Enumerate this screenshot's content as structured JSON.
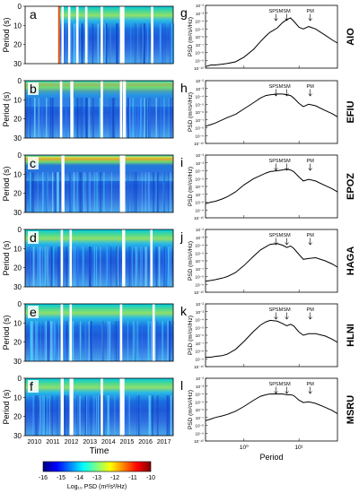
{
  "spectrogram": {
    "ylabel": "Period (s)",
    "xlabel": "Time",
    "yticks": [
      "0",
      "10",
      "20",
      "30"
    ],
    "years": [
      "2010",
      "2011",
      "2012",
      "2013",
      "2014",
      "2015",
      "2016",
      "2017"
    ],
    "colorbar": {
      "label": "Log₁₀ PSD (m²/s²/Hz)",
      "ticks": [
        "-16",
        "-15",
        "-14",
        "-13",
        "-12",
        "-11",
        "-10"
      ],
      "colors": [
        "#00007f",
        "#0000ff",
        "#0080ff",
        "#00ffff",
        "#80ff80",
        "#ffff00",
        "#ff8000",
        "#ff0000",
        "#7f0000"
      ]
    },
    "panels": [
      {
        "letter": "a",
        "data_start_frac": 0.235,
        "gaps": [
          0.245,
          0.29,
          0.345,
          0.405,
          0.51,
          0.64,
          0.655,
          0.85
        ]
      },
      {
        "letter": "b",
        "data_start_frac": 0.0,
        "gaps": [
          0.235,
          0.305,
          0.31,
          0.51,
          0.64,
          0.66,
          0.665
        ]
      },
      {
        "letter": "c",
        "data_start_frac": 0.0,
        "gaps": [
          0.245,
          0.25,
          0.64,
          0.655,
          0.66
        ]
      },
      {
        "letter": "d",
        "data_start_frac": 0.0,
        "gaps": [
          0.24,
          0.3,
          0.655,
          0.66,
          0.845
        ]
      },
      {
        "letter": "e",
        "data_start_frac": 0.0,
        "gaps": [
          0.24,
          0.3,
          0.64,
          0.86
        ]
      },
      {
        "letter": "f",
        "data_start_frac": 0.0,
        "gaps": [
          0.24,
          0.245,
          0.3,
          0.31,
          0.51,
          0.64,
          0.655
        ]
      }
    ]
  },
  "chart_data": [
    {
      "type": "line",
      "letter": "g",
      "station": "AIO",
      "xlabel": "",
      "ylabel": "PSD (m²/s²/Hz)",
      "x": [
        0.2,
        0.25,
        0.3,
        0.4,
        0.5,
        0.7,
        1,
        1.5,
        2,
        2.5,
        3,
        4,
        5,
        6,
        7,
        8,
        10,
        12,
        15,
        20,
        30,
        40,
        50
      ],
      "y": [
        -9.8,
        -9.6,
        -9.6,
        -9.5,
        -9.4,
        -9.2,
        -8.6,
        -7.6,
        -6.6,
        -5.9,
        -5.4,
        -4.9,
        -4.2,
        -3.8,
        -3.6,
        -4.0,
        -4.8,
        -5.0,
        -4.7,
        -5.0,
        -5.8,
        -6.4,
        -6.8
      ]
    },
    {
      "type": "line",
      "letter": "h",
      "station": "EFIU",
      "xlabel": "",
      "ylabel": "PSD (m²/s²/Hz)",
      "x": [
        0.2,
        0.25,
        0.3,
        0.4,
        0.5,
        0.7,
        1,
        1.5,
        2,
        2.5,
        3,
        4,
        5,
        6,
        7,
        8,
        10,
        12,
        15,
        20,
        30,
        40,
        50
      ],
      "y": [
        -7.8,
        -7.6,
        -7.4,
        -7.0,
        -6.7,
        -6.3,
        -5.6,
        -4.8,
        -4.2,
        -3.9,
        -3.8,
        -3.7,
        -3.7,
        -3.8,
        -3.9,
        -4.2,
        -4.9,
        -5.3,
        -5.0,
        -5.2,
        -5.8,
        -6.2,
        -6.6
      ]
    },
    {
      "type": "line",
      "letter": "i",
      "station": "EPOZ",
      "xlabel": "",
      "ylabel": "PSD (m²/s²/Hz)",
      "x": [
        0.2,
        0.25,
        0.3,
        0.4,
        0.5,
        0.7,
        1,
        1.5,
        2,
        2.5,
        3,
        4,
        5,
        6,
        7,
        8,
        10,
        12,
        15,
        20,
        30,
        40,
        50
      ],
      "y": [
        -8.2,
        -8.0,
        -7.9,
        -7.6,
        -7.3,
        -6.7,
        -5.8,
        -5.0,
        -4.6,
        -4.3,
        -4.1,
        -4.0,
        -3.9,
        -3.8,
        -3.9,
        -4.1,
        -4.8,
        -5.3,
        -5.1,
        -5.3,
        -5.9,
        -6.3,
        -6.7
      ]
    },
    {
      "type": "line",
      "letter": "j",
      "station": "HAGA",
      "xlabel": "",
      "ylabel": "PSD (m²/s²/Hz)",
      "x": [
        0.2,
        0.25,
        0.3,
        0.4,
        0.5,
        0.7,
        1,
        1.5,
        2,
        2.5,
        3,
        4,
        5,
        6,
        7,
        8,
        10,
        12,
        15,
        20,
        30,
        40,
        50
      ],
      "y": [
        -8.6,
        -8.5,
        -8.4,
        -8.2,
        -8.0,
        -7.5,
        -6.6,
        -5.4,
        -4.6,
        -4.2,
        -3.9,
        -3.8,
        -4.0,
        -4.3,
        -4.1,
        -4.4,
        -5.2,
        -5.8,
        -5.7,
        -5.6,
        -6.0,
        -6.4,
        -6.8
      ]
    },
    {
      "type": "line",
      "letter": "k",
      "station": "HLNI",
      "xlabel": "",
      "ylabel": "PSD (m²/s²/Hz)",
      "x": [
        0.2,
        0.25,
        0.3,
        0.4,
        0.5,
        0.7,
        1,
        1.5,
        2,
        2.5,
        3,
        4,
        5,
        6,
        7,
        8,
        10,
        12,
        15,
        20,
        30,
        40,
        50
      ],
      "y": [
        -8.8,
        -8.8,
        -8.7,
        -8.6,
        -8.4,
        -7.8,
        -6.8,
        -5.5,
        -4.7,
        -4.3,
        -4.1,
        -4.2,
        -4.5,
        -4.8,
        -4.6,
        -4.8,
        -5.6,
        -6.0,
        -5.8,
        -5.8,
        -6.1,
        -6.5,
        -6.9
      ]
    },
    {
      "type": "line",
      "letter": "l",
      "station": "MSRU",
      "xlabel": "Period",
      "ylabel": "PSD (m²/s²/Hz)",
      "x": [
        0.2,
        0.25,
        0.3,
        0.4,
        0.5,
        0.7,
        1,
        1.5,
        2,
        2.5,
        3,
        4,
        5,
        6,
        7,
        8,
        10,
        12,
        15,
        20,
        30,
        40,
        50
      ],
      "y": [
        -7.4,
        -7.2,
        -7.0,
        -6.8,
        -6.6,
        -6.2,
        -5.6,
        -4.8,
        -4.3,
        -4.1,
        -4.0,
        -4.0,
        -4.0,
        -4.1,
        -4.1,
        -4.2,
        -4.8,
        -5.1,
        -5.0,
        -5.2,
        -5.7,
        -6.1,
        -6.5
      ]
    }
  ],
  "psd_axes": {
    "x_scale": "log",
    "xlim": [
      0.2,
      50
    ],
    "xticks": [
      {
        "v": 1,
        "label": "10⁰"
      },
      {
        "v": 10,
        "label": "10¹"
      }
    ],
    "ylim": [
      -10,
      -2
    ],
    "yticks": [
      {
        "v": -2,
        "label": "10⁻²"
      },
      {
        "v": -3,
        "label": "10⁻³"
      },
      {
        "v": -4,
        "label": "10⁻⁴"
      },
      {
        "v": -5,
        "label": "10⁻⁵"
      },
      {
        "v": -6,
        "label": "10⁻⁶"
      },
      {
        "v": -7,
        "label": "10⁻⁷"
      },
      {
        "v": -8,
        "label": "10⁻⁸"
      },
      {
        "v": -9,
        "label": "10⁻⁹"
      },
      {
        "v": -10,
        "label": "10⁻¹⁰"
      }
    ],
    "markers": [
      {
        "label": "SPSM",
        "period": 3.8
      },
      {
        "label": "SM",
        "period": 6.0
      },
      {
        "label": "PM",
        "period": 16
      }
    ]
  }
}
